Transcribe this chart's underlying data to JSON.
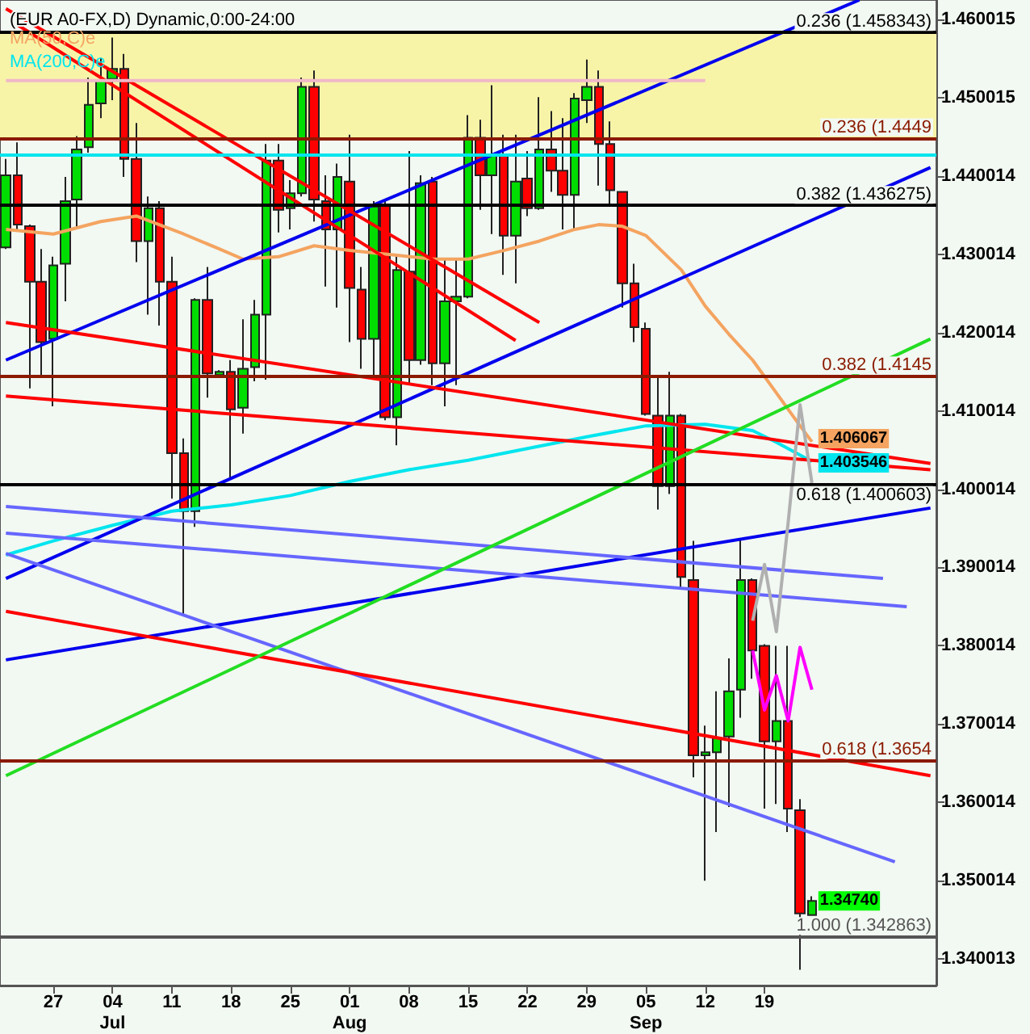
{
  "chart_data": {
    "type": "candlestick",
    "title": "(EUR A0-FX,D) Dynamic,0:00-24:00",
    "categories": [
      null,
      null,
      null,
      null,
      "27",
      null,
      null,
      null,
      null,
      "04\nJul",
      null,
      null,
      null,
      null,
      "11",
      null,
      null,
      null,
      null,
      "18",
      null,
      null,
      null,
      null,
      "25",
      null,
      null,
      null,
      null,
      "01\nAug",
      null,
      null,
      null,
      null,
      "08",
      null,
      null,
      null,
      null,
      "15",
      null,
      null,
      null,
      null,
      "22",
      null,
      null,
      null,
      null,
      "29",
      null,
      null,
      null,
      null,
      "05\nSep",
      null,
      null,
      null,
      null,
      "12",
      null,
      null,
      null,
      null,
      "19",
      null,
      null,
      null,
      null,
      null,
      null,
      null,
      null,
      null,
      null,
      null,
      null,
      null,
      null
    ],
    "ohlc": [
      [
        1.4309,
        1.4422,
        1.4307,
        1.4401
      ],
      [
        1.4401,
        1.4443,
        1.4332,
        1.4338
      ],
      [
        1.4336,
        1.4338,
        1.4129,
        1.4265
      ],
      [
        1.4265,
        1.4307,
        1.4144,
        1.4188
      ],
      [
        1.4192,
        1.4297,
        1.4106,
        1.4286
      ],
      [
        1.4288,
        1.4399,
        1.424,
        1.4368
      ],
      [
        1.437,
        1.4451,
        1.4334,
        1.4434
      ],
      [
        1.4437,
        1.4526,
        1.443,
        1.4491
      ],
      [
        1.4493,
        1.4551,
        1.4474,
        1.4522
      ],
      [
        1.4524,
        1.4577,
        1.4497,
        1.4537
      ],
      [
        1.4537,
        1.4556,
        1.4399,
        1.4422
      ],
      [
        1.4422,
        1.4468,
        1.429,
        1.4317
      ],
      [
        1.4317,
        1.4374,
        1.4223,
        1.4359
      ],
      [
        1.4359,
        1.4368,
        1.4209,
        1.4265
      ],
      [
        1.4265,
        1.4297,
        1.3988,
        1.4046
      ],
      [
        1.4046,
        1.4065,
        1.3838,
        1.3972
      ],
      [
        1.3972,
        1.4244,
        1.3952,
        1.4242
      ],
      [
        1.4242,
        1.4284,
        1.4117,
        1.4148
      ],
      [
        1.4146,
        1.4152,
        1.4144,
        1.415
      ],
      [
        1.415,
        1.4165,
        1.4014,
        1.4102
      ],
      [
        1.4104,
        1.4217,
        1.4071,
        1.4154
      ],
      [
        1.4156,
        1.4242,
        1.4138,
        1.4223
      ],
      [
        1.4223,
        1.4441,
        1.414,
        1.442
      ],
      [
        1.442,
        1.4441,
        1.4328,
        1.4357
      ],
      [
        1.4359,
        1.4395,
        1.4332,
        1.4378
      ],
      [
        1.4378,
        1.4526,
        1.4374,
        1.4514
      ],
      [
        1.4514,
        1.4535,
        1.4342,
        1.437
      ],
      [
        1.4368,
        1.4401,
        1.4259,
        1.4332
      ],
      [
        1.4332,
        1.4416,
        1.4232,
        1.4399
      ],
      [
        1.4393,
        1.4453,
        1.4188,
        1.4257
      ],
      [
        1.4255,
        1.4284,
        1.4154,
        1.4192
      ],
      [
        1.4192,
        1.4368,
        1.4144,
        1.4361
      ],
      [
        1.4363,
        1.4368,
        1.4088,
        1.4092
      ],
      [
        1.4092,
        1.4297,
        1.4056,
        1.428
      ],
      [
        1.4278,
        1.4432,
        1.4133,
        1.4165
      ],
      [
        1.4165,
        1.4401,
        1.4159,
        1.4391
      ],
      [
        1.4393,
        1.4399,
        1.4133,
        1.4161
      ],
      [
        1.4161,
        1.4294,
        1.4106,
        1.424
      ],
      [
        1.424,
        1.4294,
        1.4133,
        1.4246
      ],
      [
        1.4246,
        1.4478,
        1.4244,
        1.4449
      ],
      [
        1.4449,
        1.4472,
        1.4357,
        1.4401
      ],
      [
        1.4401,
        1.4516,
        1.4326,
        1.4426
      ],
      [
        1.4426,
        1.4453,
        1.4274,
        1.4324
      ],
      [
        1.4324,
        1.4453,
        1.4263,
        1.4393
      ],
      [
        1.4397,
        1.4432,
        1.4349,
        1.4359
      ],
      [
        1.4359,
        1.4501,
        1.4357,
        1.4434
      ],
      [
        1.4434,
        1.4483,
        1.438,
        1.4407
      ],
      [
        1.4407,
        1.4474,
        1.4332,
        1.4376
      ],
      [
        1.4376,
        1.4506,
        1.4332,
        1.4499
      ],
      [
        1.4497,
        1.4549,
        1.4468,
        1.4514
      ],
      [
        1.4514,
        1.4535,
        1.4388,
        1.4441
      ],
      [
        1.4441,
        1.447,
        1.4363,
        1.4382
      ],
      [
        1.438,
        1.438,
        1.4232,
        1.4263
      ],
      [
        1.4263,
        1.4288,
        1.4188,
        1.4207
      ],
      [
        1.4205,
        1.4213,
        1.4094,
        1.4096
      ],
      [
        1.4094,
        1.4144,
        1.3974,
        1.4004
      ],
      [
        1.4004,
        1.415,
        1.3994,
        1.4094
      ],
      [
        1.4094,
        1.4096,
        1.3874,
        1.3888
      ],
      [
        1.3884,
        1.3934,
        1.3632,
        1.366
      ],
      [
        1.366,
        1.3698,
        1.35,
        1.3664
      ],
      [
        1.3664,
        1.3742,
        1.3562,
        1.3682
      ],
      [
        1.3684,
        1.3784,
        1.3594,
        1.3742
      ],
      [
        1.3744,
        1.3936,
        1.3708,
        1.3884
      ],
      [
        1.3884,
        1.3886,
        1.3758,
        1.3794
      ],
      [
        1.38,
        1.3802,
        1.3592,
        1.3678
      ],
      [
        1.3678,
        1.38,
        1.3598,
        1.3704
      ],
      [
        1.3704,
        1.38,
        1.3562,
        1.3592
      ],
      [
        1.359,
        1.3604,
        1.3386,
        1.3458
      ],
      [
        1.3456,
        1.348,
        1.3456,
        1.3474
      ],
      null,
      null,
      null,
      null,
      null,
      null,
      null,
      null,
      null,
      null
    ],
    "colors": [
      "#00dd00",
      "#ff0000",
      "#ff0000",
      "#ff0000",
      "#00dd00",
      "#00dd00",
      "#00dd00",
      "#00dd00",
      "#00dd00",
      "#00dd00",
      "#ff0000",
      "#ff0000",
      "#00dd00",
      "#ff0000",
      "#ff0000",
      "#ff0000",
      "#00dd00",
      "#ff0000",
      "#00dd00",
      "#ff0000",
      "#00dd00",
      "#00dd00",
      "#00dd00",
      "#ff0000",
      "#00dd00",
      "#00dd00",
      "#ff0000",
      "#ff0000",
      "#00dd00",
      "#ff0000",
      "#ff0000",
      "#00dd00",
      "#ff0000",
      "#00dd00",
      "#ff0000",
      "#00dd00",
      "#ff0000",
      "#00dd00",
      "#00dd00",
      "#00dd00",
      "#ff0000",
      "#00dd00",
      "#ff0000",
      "#00dd00",
      "#ff0000",
      "#00dd00",
      "#ff0000",
      "#ff0000",
      "#00dd00",
      "#00dd00",
      "#ff0000",
      "#ff0000",
      "#ff0000",
      "#ff0000",
      "#ff0000",
      "#ff0000",
      "#00dd00",
      "#ff0000",
      "#ff0000",
      "#00dd00",
      "#00dd00",
      "#00dd00",
      "#00dd00",
      "#ff0000",
      "#ff0000",
      "#00dd00",
      "#ff0000",
      "#ff0000",
      "#00dd00",
      null,
      null,
      null,
      null,
      null,
      null,
      null,
      null,
      null,
      null
    ],
    "value_labels": [
      null,
      null,
      null,
      null,
      null,
      null,
      null,
      null,
      null,
      null,
      null,
      null,
      null,
      null,
      null,
      null,
      null,
      null,
      null,
      null,
      null,
      null,
      null,
      null,
      null,
      null,
      null,
      null,
      null,
      null,
      null,
      null,
      null,
      null,
      null,
      null,
      null,
      null,
      null,
      null,
      null,
      null,
      null,
      null,
      null,
      null,
      null,
      null,
      null,
      null,
      null,
      null,
      null,
      null,
      null,
      null,
      null,
      null,
      null,
      null,
      null,
      null,
      null,
      null,
      null,
      null,
      null,
      null,
      "1.34740",
      null,
      null,
      null,
      null,
      null,
      null,
      null,
      null,
      null,
      null
    ],
    "series": [
      {
        "type": "line",
        "name": "MA(50,C)e",
        "color": "#f4a460",
        "values": [
          1.4332,
          null,
          null,
          null,
          1.4326,
          null,
          null,
          null,
          1.4342,
          null,
          null,
          1.4349,
          null,
          null,
          null,
          1.4326,
          null,
          null,
          1.4307,
          null,
          1.4294,
          null,
          null,
          1.4297,
          null,
          null,
          1.4311,
          null,
          null,
          1.4305,
          null,
          null,
          null,
          1.4299,
          null,
          null,
          1.4294,
          null,
          null,
          1.4294,
          null,
          null,
          1.4305,
          null,
          null,
          1.4317,
          null,
          null,
          1.4332,
          null,
          1.4338,
          null,
          1.4336,
          null,
          1.4324,
          null,
          null,
          1.428,
          null,
          1.4234,
          null,
          1.4198,
          null,
          1.4165,
          null,
          1.4123,
          null,
          1.4081,
          1.406067,
          null,
          null,
          null,
          null,
          null,
          null,
          null,
          null,
          null,
          null
        ],
        "value_labels": [
          null,
          null,
          null,
          null,
          null,
          null,
          null,
          null,
          null,
          null,
          null,
          null,
          null,
          null,
          null,
          null,
          null,
          null,
          null,
          null,
          null,
          null,
          null,
          null,
          null,
          null,
          null,
          null,
          null,
          null,
          null,
          null,
          null,
          null,
          null,
          null,
          null,
          null,
          null,
          null,
          null,
          null,
          null,
          null,
          null,
          null,
          null,
          null,
          null,
          null,
          null,
          null,
          null,
          null,
          null,
          null,
          null,
          null,
          null,
          null,
          null,
          null,
          null,
          null,
          null,
          null,
          null,
          null,
          "1.406067",
          null,
          null,
          null,
          null,
          null,
          null,
          null,
          null,
          null,
          null
        ]
      },
      {
        "type": "line",
        "name": "MA(200,C)e",
        "color": "#00e5ee",
        "values": [
          1.3916,
          null,
          null,
          null,
          1.3934,
          null,
          null,
          null,
          null,
          1.3954,
          null,
          null,
          null,
          null,
          1.3972,
          null,
          null,
          null,
          null,
          1.398,
          null,
          null,
          null,
          null,
          1.3992,
          null,
          null,
          null,
          null,
          1.401,
          null,
          null,
          null,
          null,
          1.4025,
          null,
          null,
          null,
          null,
          1.4037,
          null,
          null,
          null,
          null,
          1.4052,
          null,
          null,
          null,
          null,
          1.4067,
          null,
          null,
          null,
          null,
          1.4081,
          null,
          null,
          null,
          null,
          1.4083,
          null,
          null,
          null,
          1.4075,
          null,
          1.406,
          null,
          null,
          1.403546,
          null,
          null,
          null,
          null,
          null,
          null,
          null,
          null,
          null,
          null
        ],
        "value_labels": [
          null,
          null,
          null,
          null,
          null,
          null,
          null,
          null,
          null,
          null,
          null,
          null,
          null,
          null,
          null,
          null,
          null,
          null,
          null,
          null,
          null,
          null,
          null,
          null,
          null,
          null,
          null,
          null,
          null,
          null,
          null,
          null,
          null,
          null,
          null,
          null,
          null,
          null,
          null,
          null,
          null,
          null,
          null,
          null,
          null,
          null,
          null,
          null,
          null,
          null,
          null,
          null,
          null,
          null,
          null,
          null,
          null,
          null,
          null,
          null,
          null,
          null,
          null,
          null,
          null,
          null,
          null,
          null,
          "1.403546",
          null,
          null,
          null,
          null,
          null,
          null,
          null,
          null,
          null,
          null
        ]
      },
      {
        "type": "line",
        "color": "#0000ee",
        "values": [
          1.4165,
          null,
          null,
          null,
          null,
          null,
          null,
          null,
          null,
          null,
          null,
          null,
          null,
          null,
          null,
          null,
          null,
          null,
          null,
          null,
          null,
          null,
          null,
          null,
          null,
          null,
          null,
          null,
          null,
          null,
          null,
          null,
          null,
          null,
          null,
          null,
          null,
          null,
          null,
          null,
          null,
          null,
          null,
          null,
          null,
          null,
          null,
          null,
          null,
          null,
          null,
          null,
          null,
          null,
          null,
          null,
          null,
          null,
          null,
          null,
          null,
          null,
          null,
          null,
          null,
          null,
          null,
          null,
          null,
          null,
          null,
          null,
          1.4625,
          null,
          null,
          null,
          null,
          null,
          null
        ]
      },
      {
        "type": "line",
        "color": "#0000ee",
        "values": [
          1.3886,
          null,
          null,
          null,
          null,
          null,
          null,
          null,
          null,
          null,
          null,
          null,
          null,
          null,
          null,
          null,
          null,
          null,
          null,
          null,
          null,
          null,
          null,
          null,
          null,
          null,
          null,
          null,
          null,
          null,
          null,
          null,
          null,
          null,
          null,
          null,
          null,
          null,
          null,
          null,
          null,
          null,
          null,
          null,
          null,
          null,
          null,
          null,
          null,
          null,
          null,
          null,
          null,
          null,
          null,
          null,
          null,
          null,
          null,
          null,
          null,
          null,
          null,
          null,
          null,
          null,
          null,
          null,
          null,
          null,
          null,
          null,
          null,
          null,
          null,
          null,
          null,
          null,
          1.4411
        ]
      },
      {
        "type": "line",
        "color": "#0000ee",
        "values": [
          1.3782,
          null,
          null,
          null,
          null,
          null,
          null,
          null,
          null,
          null,
          null,
          null,
          null,
          null,
          null,
          null,
          null,
          null,
          null,
          null,
          null,
          null,
          null,
          null,
          null,
          null,
          null,
          null,
          null,
          null,
          null,
          null,
          null,
          null,
          null,
          null,
          null,
          null,
          null,
          null,
          null,
          null,
          null,
          null,
          null,
          null,
          null,
          null,
          null,
          null,
          null,
          null,
          null,
          null,
          null,
          null,
          null,
          null,
          null,
          null,
          null,
          null,
          null,
          null,
          null,
          null,
          null,
          null,
          null,
          null,
          null,
          null,
          null,
          null,
          null,
          null,
          null,
          null,
          1.3976
        ]
      },
      {
        "type": "line",
        "color": "#6666ff",
        "values": [
          1.3978,
          null,
          null,
          null,
          null,
          null,
          null,
          null,
          null,
          null,
          null,
          null,
          null,
          null,
          null,
          null,
          null,
          null,
          null,
          null,
          null,
          null,
          null,
          null,
          null,
          null,
          null,
          null,
          null,
          null,
          null,
          null,
          null,
          null,
          null,
          null,
          null,
          null,
          null,
          null,
          null,
          null,
          null,
          null,
          null,
          null,
          null,
          null,
          null,
          null,
          null,
          null,
          null,
          null,
          null,
          null,
          null,
          null,
          null,
          null,
          null,
          null,
          null,
          null,
          null,
          null,
          null,
          null,
          null,
          null,
          null,
          null,
          null,
          null,
          1.3886,
          null,
          null,
          null,
          null
        ]
      },
      {
        "type": "line",
        "color": "#6666ff",
        "values": [
          1.3944,
          null,
          null,
          null,
          null,
          null,
          null,
          null,
          null,
          null,
          null,
          null,
          null,
          null,
          null,
          null,
          null,
          null,
          null,
          null,
          null,
          null,
          null,
          null,
          null,
          null,
          null,
          null,
          null,
          null,
          null,
          null,
          null,
          null,
          null,
          null,
          null,
          null,
          null,
          null,
          null,
          null,
          null,
          null,
          null,
          null,
          null,
          null,
          null,
          null,
          null,
          null,
          null,
          null,
          null,
          null,
          null,
          null,
          null,
          null,
          null,
          null,
          null,
          null,
          null,
          null,
          null,
          null,
          null,
          null,
          null,
          null,
          null,
          null,
          null,
          null,
          1.385,
          null,
          null
        ]
      },
      {
        "type": "line",
        "color": "#6666ff",
        "values": [
          1.3918,
          null,
          null,
          null,
          null,
          null,
          null,
          null,
          null,
          null,
          null,
          null,
          null,
          null,
          null,
          null,
          null,
          null,
          null,
          null,
          null,
          null,
          null,
          null,
          null,
          null,
          null,
          null,
          null,
          null,
          null,
          null,
          null,
          null,
          null,
          null,
          null,
          null,
          null,
          null,
          null,
          null,
          null,
          null,
          null,
          null,
          null,
          null,
          null,
          null,
          null,
          null,
          null,
          null,
          null,
          null,
          null,
          null,
          null,
          null,
          null,
          null,
          null,
          null,
          null,
          null,
          null,
          null,
          null,
          null,
          null,
          null,
          null,
          null,
          null,
          1.3524,
          null,
          null,
          null
        ]
      },
      {
        "type": "line",
        "color": "#ff0000",
        "values": [
          1.4213,
          null,
          null,
          null,
          null,
          null,
          null,
          null,
          null,
          null,
          null,
          null,
          null,
          null,
          null,
          null,
          null,
          null,
          null,
          null,
          null,
          null,
          null,
          null,
          null,
          null,
          null,
          null,
          null,
          null,
          null,
          null,
          null,
          null,
          null,
          null,
          null,
          null,
          null,
          null,
          null,
          null,
          null,
          null,
          null,
          null,
          null,
          null,
          null,
          null,
          null,
          null,
          null,
          null,
          null,
          null,
          null,
          null,
          null,
          null,
          null,
          null,
          null,
          null,
          null,
          null,
          null,
          null,
          null,
          null,
          null,
          null,
          null,
          null,
          null,
          null,
          null,
          null,
          1.4033
        ]
      },
      {
        "type": "line",
        "color": "#ff0000",
        "values": [
          1.4119,
          null,
          null,
          null,
          null,
          null,
          null,
          null,
          null,
          null,
          null,
          null,
          null,
          null,
          null,
          null,
          null,
          null,
          null,
          null,
          null,
          null,
          null,
          null,
          null,
          null,
          null,
          null,
          null,
          null,
          null,
          null,
          null,
          null,
          null,
          null,
          null,
          null,
          null,
          null,
          null,
          null,
          null,
          null,
          null,
          null,
          null,
          null,
          null,
          null,
          null,
          null,
          null,
          null,
          null,
          null,
          null,
          null,
          null,
          null,
          null,
          null,
          null,
          null,
          null,
          null,
          null,
          null,
          null,
          null,
          null,
          null,
          null,
          null,
          null,
          null,
          null,
          null,
          1.4025
        ]
      },
      {
        "type": "line",
        "color": "#ff0000",
        "values": [
          1.3844,
          null,
          null,
          null,
          null,
          null,
          null,
          null,
          null,
          null,
          null,
          null,
          null,
          null,
          null,
          null,
          null,
          null,
          null,
          null,
          null,
          null,
          null,
          null,
          null,
          null,
          null,
          null,
          null,
          null,
          null,
          null,
          null,
          null,
          null,
          null,
          null,
          null,
          null,
          null,
          null,
          null,
          null,
          null,
          null,
          null,
          null,
          null,
          null,
          null,
          null,
          null,
          null,
          null,
          null,
          null,
          null,
          null,
          null,
          null,
          null,
          null,
          null,
          null,
          null,
          null,
          null,
          null,
          null,
          null,
          null,
          null,
          null,
          null,
          null,
          null,
          null,
          null,
          1.3634
        ]
      },
      {
        "type": "line",
        "color": "#ff0000",
        "values": [
          1.4614,
          null,
          null,
          null,
          null,
          null,
          null,
          null,
          null,
          null,
          null,
          null,
          null,
          null,
          null,
          null,
          null,
          null,
          null,
          null,
          null,
          null,
          null,
          null,
          null,
          null,
          null,
          null,
          null,
          null,
          null,
          null,
          null,
          null,
          null,
          null,
          null,
          null,
          null,
          null,
          null,
          null,
          null,
          null,
          null,
          1.4213,
          null,
          null,
          null,
          null,
          null,
          null,
          null,
          null,
          null,
          null,
          null,
          null,
          null,
          null,
          null,
          null,
          null,
          null,
          null,
          null,
          null,
          null,
          null,
          null,
          null,
          null,
          null,
          null,
          null,
          null,
          null,
          null,
          null
        ]
      },
      {
        "type": "line",
        "color": "#ff0000",
        "values": [
          null,
          1.4593,
          null,
          null,
          null,
          null,
          null,
          null,
          null,
          null,
          null,
          null,
          null,
          null,
          null,
          null,
          null,
          null,
          null,
          null,
          null,
          null,
          null,
          null,
          null,
          null,
          null,
          null,
          null,
          null,
          null,
          null,
          null,
          null,
          null,
          null,
          null,
          null,
          null,
          null,
          null,
          null,
          null,
          1.419,
          null,
          null,
          null,
          null,
          null,
          null,
          null,
          null,
          null,
          null,
          null,
          null,
          null,
          null,
          null,
          null,
          null,
          null,
          null,
          null,
          null,
          null,
          null,
          null,
          null,
          null,
          null,
          null,
          null,
          null,
          null,
          null,
          null,
          null,
          null
        ]
      },
      {
        "type": "line",
        "color": "#22dd22",
        "values": [
          1.3634,
          null,
          null,
          null,
          null,
          null,
          null,
          null,
          null,
          null,
          null,
          null,
          null,
          null,
          null,
          null,
          null,
          null,
          null,
          null,
          null,
          null,
          null,
          null,
          null,
          null,
          null,
          null,
          null,
          null,
          null,
          null,
          null,
          null,
          null,
          null,
          null,
          null,
          null,
          null,
          null,
          null,
          null,
          null,
          null,
          null,
          null,
          null,
          null,
          null,
          null,
          null,
          null,
          null,
          null,
          null,
          null,
          null,
          null,
          null,
          null,
          null,
          null,
          null,
          null,
          null,
          null,
          null,
          null,
          null,
          null,
          null,
          null,
          null,
          null,
          null,
          null,
          null,
          1.4192
        ]
      },
      {
        "type": "line",
        "color": "#f0b8c8",
        "values": [
          1.4522,
          null,
          null,
          null,
          null,
          null,
          null,
          null,
          null,
          null,
          null,
          null,
          null,
          null,
          null,
          null,
          null,
          null,
          null,
          null,
          null,
          null,
          null,
          null,
          null,
          null,
          null,
          null,
          null,
          null,
          null,
          null,
          null,
          null,
          null,
          null,
          null,
          null,
          null,
          null,
          null,
          null,
          null,
          null,
          null,
          null,
          null,
          null,
          null,
          null,
          null,
          null,
          null,
          null,
          null,
          null,
          null,
          null,
          null,
          1.4522,
          null,
          null,
          null,
          null,
          null,
          null,
          null,
          null,
          null,
          null,
          null,
          null,
          null,
          null,
          null,
          null,
          null,
          null,
          null
        ]
      },
      {
        "type": "line",
        "color": "#b0b0b0",
        "values": [
          null,
          null,
          null,
          null,
          null,
          null,
          null,
          null,
          null,
          null,
          null,
          null,
          null,
          null,
          null,
          null,
          null,
          null,
          null,
          null,
          null,
          null,
          null,
          null,
          null,
          null,
          null,
          null,
          null,
          null,
          null,
          null,
          null,
          null,
          null,
          null,
          null,
          null,
          null,
          null,
          null,
          null,
          null,
          null,
          null,
          null,
          null,
          null,
          null,
          null,
          null,
          null,
          null,
          null,
          null,
          null,
          null,
          null,
          null,
          null,
          null,
          null,
          null,
          1.3832,
          1.3904,
          1.3818,
          1.3958,
          1.4108,
          1.4008,
          null,
          null,
          null,
          null,
          null,
          null,
          null,
          null,
          null,
          null
        ]
      },
      {
        "type": "line",
        "color": "#ff00ff",
        "values": [
          null,
          null,
          null,
          null,
          null,
          null,
          null,
          null,
          null,
          null,
          null,
          null,
          null,
          null,
          null,
          null,
          null,
          null,
          null,
          null,
          null,
          null,
          null,
          null,
          null,
          null,
          null,
          null,
          null,
          null,
          null,
          null,
          null,
          null,
          null,
          null,
          null,
          null,
          null,
          null,
          null,
          null,
          null,
          null,
          null,
          null,
          null,
          null,
          null,
          null,
          null,
          null,
          null,
          null,
          null,
          null,
          null,
          null,
          null,
          null,
          null,
          null,
          null,
          1.3794,
          1.3718,
          1.3762,
          1.3704,
          1.3798,
          1.3744,
          null,
          null,
          null,
          null,
          null,
          null,
          null,
          null,
          null,
          null
        ]
      }
    ],
    "bands": [
      {
        "axis": "y",
        "from": 1.4449,
        "to": 1.458343,
        "color": "#f7f4a8"
      }
    ],
    "ref_lines": [
      {
        "axis": "y",
        "value": 1.458343,
        "label": "0.236 (1.458343)",
        "color": "#000000"
      },
      {
        "axis": "y",
        "value": 1.4449,
        "label": "0.236 (1.4449",
        "color": "#8b1a00"
      },
      {
        "axis": "y",
        "value": 1.4428,
        "color": "#00e5ee"
      },
      {
        "axis": "y",
        "value": 1.436275,
        "label": "0.382 (1.436275)",
        "color": "#000000"
      },
      {
        "axis": "y",
        "value": 1.4145,
        "label": "0.382 (1.4145",
        "color": "#8b1a00"
      },
      {
        "axis": "y",
        "value": 1.400603,
        "label": "0.618 (1.400603)",
        "color": "#000000"
      },
      {
        "axis": "y",
        "value": 1.3654,
        "label": "0.618 (1.3654",
        "color": "#8b1a00"
      },
      {
        "axis": "y",
        "value": 1.342863,
        "label": "1.000 (1.342863)",
        "color": "#555555"
      }
    ],
    "ylim": [
      1.3366,
      1.4625
    ],
    "yticks": [
      1.340013,
      1.350014,
      1.360014,
      1.370014,
      1.380014,
      1.390014,
      1.400014,
      1.410014,
      1.420014,
      1.430014,
      1.440014,
      1.450015,
      1.460015
    ],
    "legend": "top left",
    "marker": "none"
  }
}
